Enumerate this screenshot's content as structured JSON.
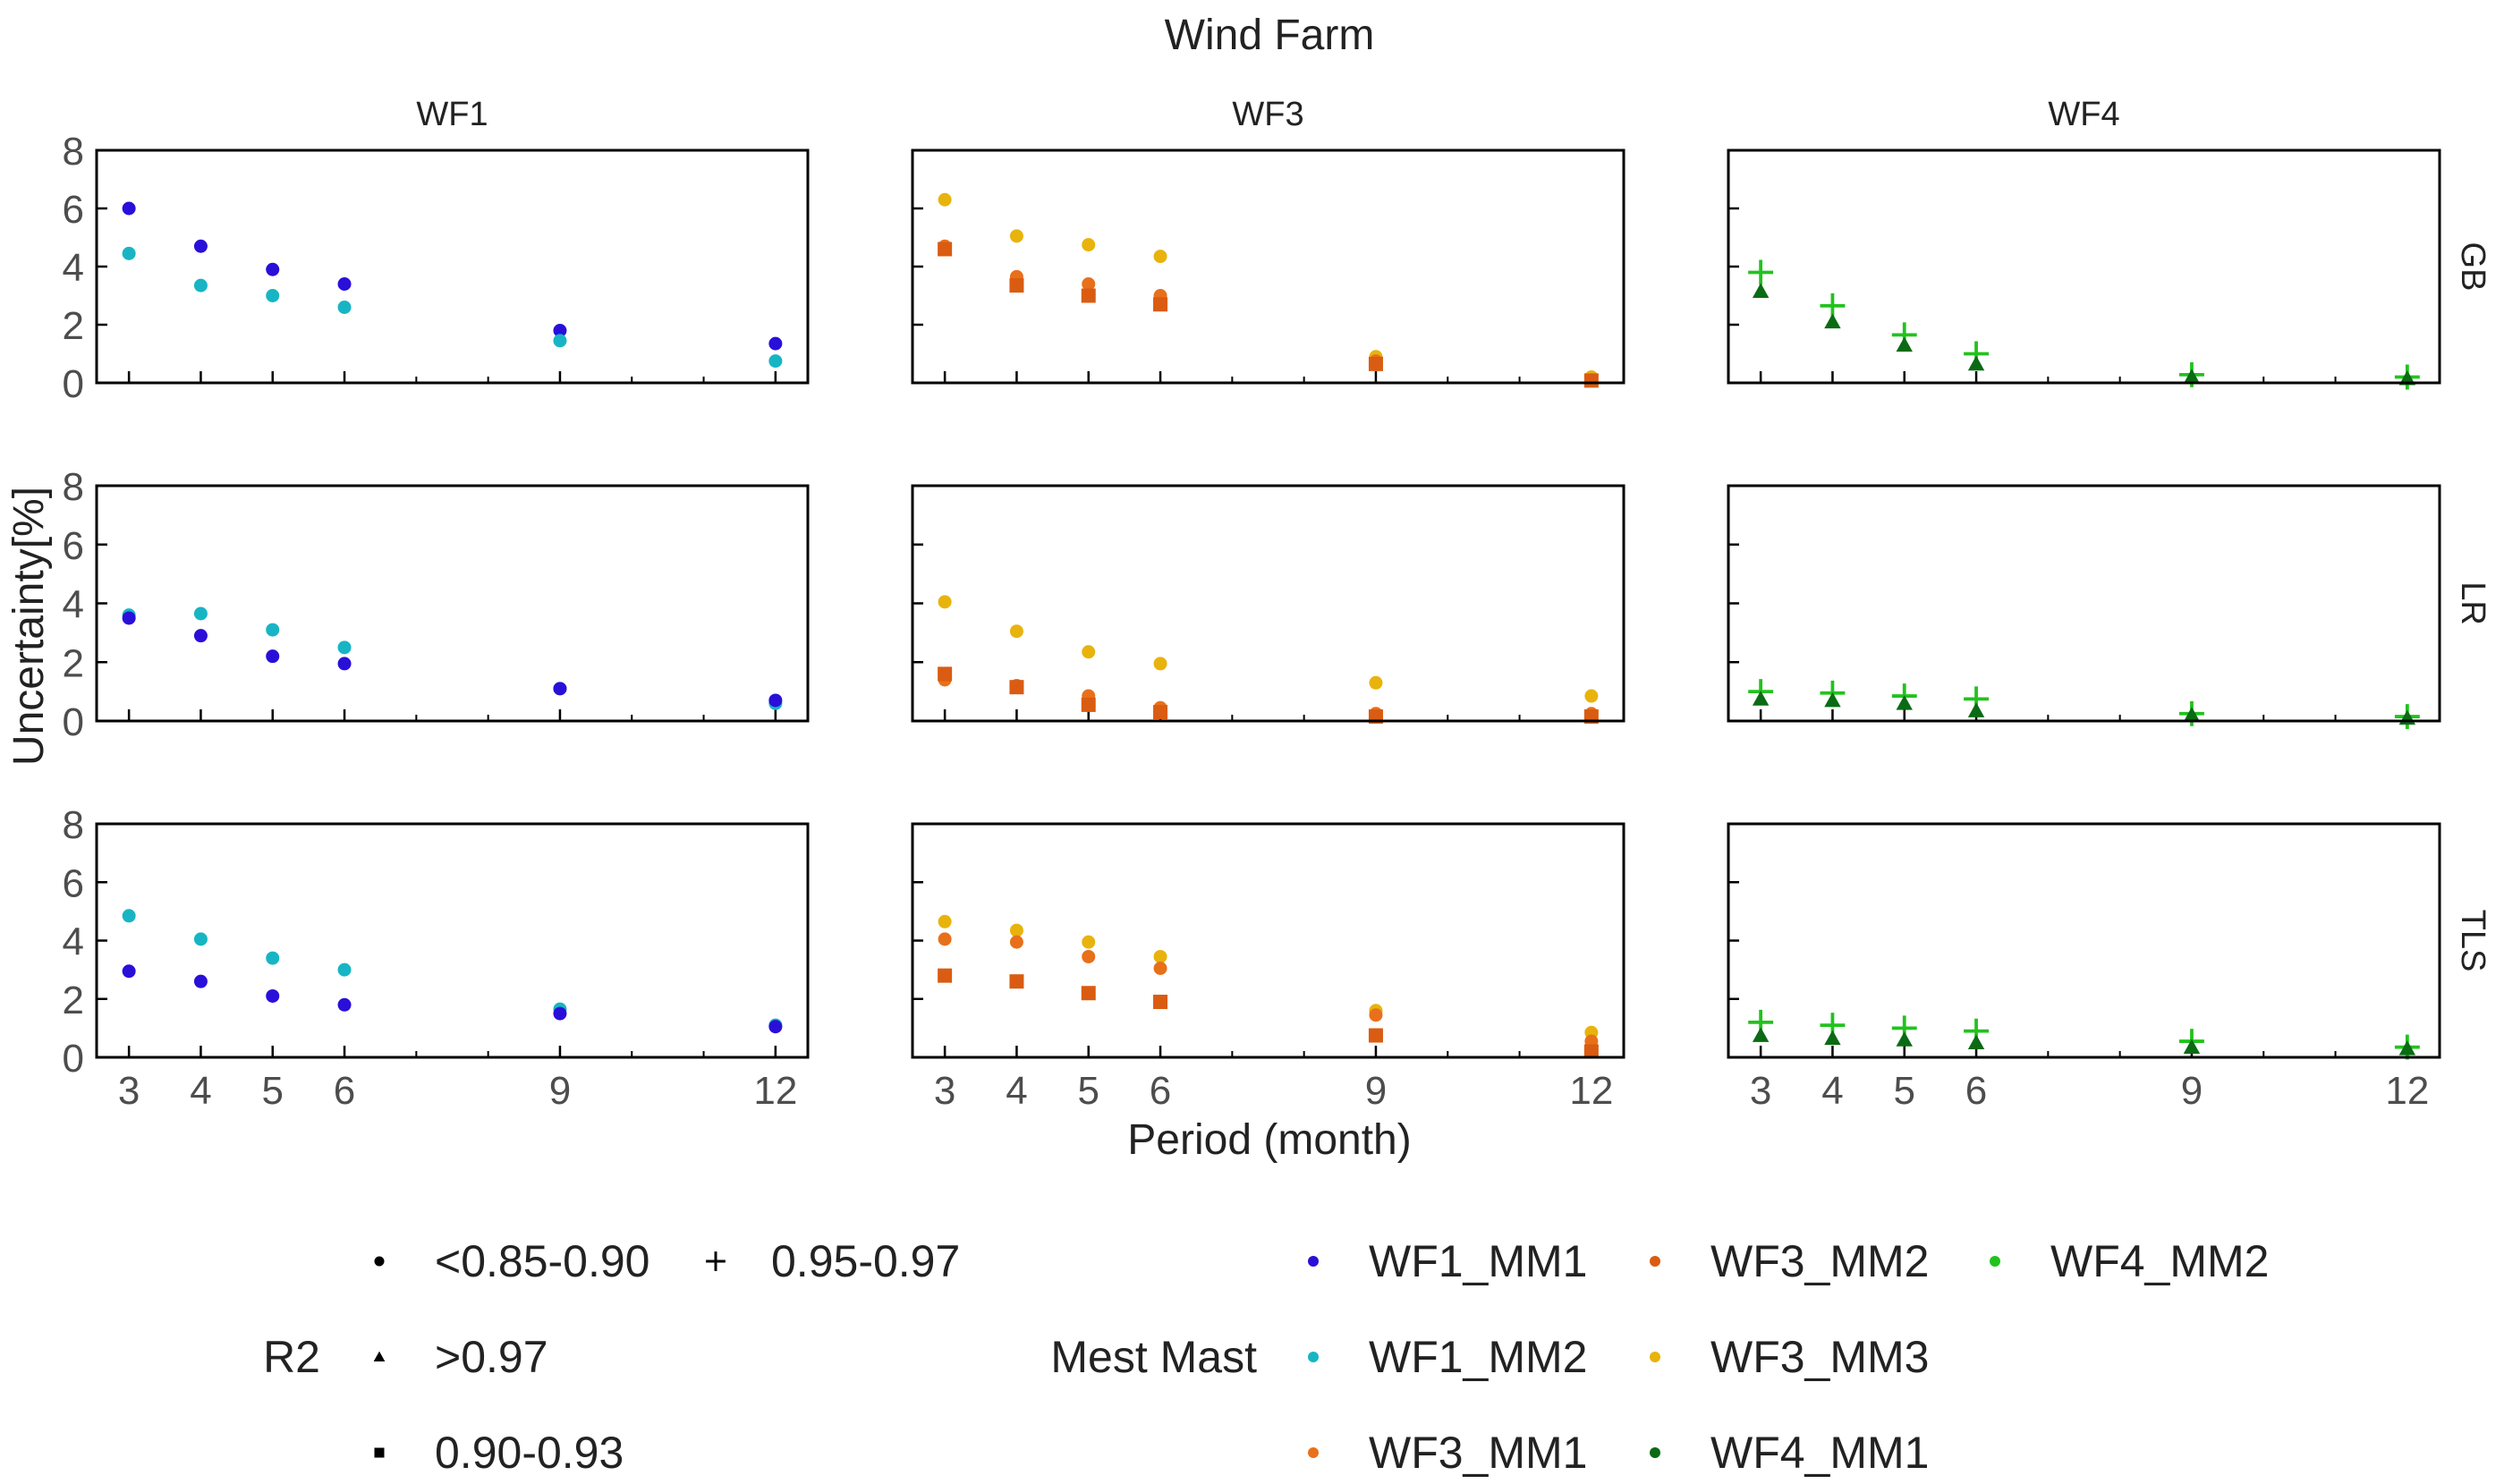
{
  "chart_data": {
    "type": "scatter",
    "title": "Wind Farm",
    "xlabel": "Period (month)",
    "ylabel": "Uncertainty[%]",
    "x_ticks": [
      3,
      4,
      5,
      6,
      9,
      12
    ],
    "xlim": [
      2.55,
      12.45
    ],
    "y_ticks": [
      0,
      2,
      4,
      6,
      8
    ],
    "ylim": [
      0,
      8
    ],
    "columns": [
      "WF1",
      "WF3",
      "WF4"
    ],
    "rows": [
      "GB",
      "LR",
      "TLS"
    ],
    "series_colors": {
      "WF1_MM1": "#2a0fd9",
      "WF1_MM2": "#17b5c4",
      "WF3_MM1": "#e8701a",
      "WF3_MM2": "#d95c12",
      "WF3_MM3": "#e8b30c",
      "WF4_MM1": "#0a6b14",
      "WF4_MM2": "#22c21e"
    },
    "panels": [
      {
        "col": "WF1",
        "row": "GB",
        "series": [
          {
            "name": "WF1_MM1",
            "shape": "circle",
            "x": [
              3,
              4,
              5,
              6,
              9,
              12
            ],
            "y": [
              6.0,
              4.7,
              3.9,
              3.4,
              1.8,
              1.35
            ]
          },
          {
            "name": "WF1_MM2",
            "shape": "circle",
            "x": [
              3,
              4,
              5,
              6,
              9,
              12
            ],
            "y": [
              4.45,
              3.35,
              3.0,
              2.6,
              1.45,
              0.75
            ]
          }
        ]
      },
      {
        "col": "WF3",
        "row": "GB",
        "series": [
          {
            "name": "WF3_MM3",
            "shape": "circle",
            "x": [
              3,
              4,
              5,
              6,
              9,
              12
            ],
            "y": [
              6.3,
              5.05,
              4.75,
              4.35,
              0.9,
              0.2
            ]
          },
          {
            "name": "WF3_MM1",
            "shape": "circle",
            "x": [
              3,
              4,
              5,
              6,
              9,
              12
            ],
            "y": [
              4.7,
              3.65,
              3.4,
              3.0,
              0.75,
              0.1
            ]
          },
          {
            "name": "WF3_MM2",
            "shape": "square",
            "x": [
              3,
              4,
              5,
              6,
              9,
              12
            ],
            "y": [
              4.6,
              3.35,
              3.0,
              2.7,
              0.65,
              0.08
            ]
          }
        ]
      },
      {
        "col": "WF4",
        "row": "GB",
        "series": [
          {
            "name": "WF4_MM2",
            "shape": "plus",
            "x": [
              3,
              4,
              5,
              6,
              9,
              12
            ],
            "y": [
              3.8,
              2.65,
              1.65,
              1.0,
              0.28,
              0.2
            ]
          },
          {
            "name": "WF4_MM1",
            "shape": "triangle",
            "x": [
              3,
              4,
              5,
              6,
              9,
              12
            ],
            "y": [
              3.15,
              2.1,
              1.3,
              0.65,
              0.2,
              0.15
            ]
          }
        ]
      },
      {
        "col": "WF1",
        "row": "LR",
        "series": [
          {
            "name": "WF1_MM2",
            "shape": "circle",
            "x": [
              3,
              4,
              5,
              6,
              9,
              12
            ],
            "y": [
              3.6,
              3.65,
              3.1,
              2.5,
              1.1,
              0.6
            ]
          },
          {
            "name": "WF1_MM1",
            "shape": "circle",
            "x": [
              3,
              4,
              5,
              6,
              9,
              12
            ],
            "y": [
              3.5,
              2.9,
              2.2,
              1.95,
              1.1,
              0.7
            ]
          }
        ]
      },
      {
        "col": "WF3",
        "row": "LR",
        "series": [
          {
            "name": "WF3_MM3",
            "shape": "circle",
            "x": [
              3,
              4,
              5,
              6,
              9,
              12
            ],
            "y": [
              4.05,
              3.05,
              2.35,
              1.95,
              1.3,
              0.85
            ]
          },
          {
            "name": "WF3_MM1",
            "shape": "circle",
            "x": [
              3,
              4,
              5,
              6,
              9,
              12
            ],
            "y": [
              1.4,
              1.2,
              0.85,
              0.45,
              0.25,
              0.25
            ]
          },
          {
            "name": "WF3_MM2",
            "shape": "square",
            "x": [
              3,
              4,
              5,
              6,
              9,
              12
            ],
            "y": [
              1.6,
              1.15,
              0.55,
              0.3,
              0.15,
              0.15
            ]
          }
        ]
      },
      {
        "col": "WF4",
        "row": "LR",
        "series": [
          {
            "name": "WF4_MM2",
            "shape": "plus",
            "x": [
              3,
              4,
              5,
              6,
              9,
              12
            ],
            "y": [
              1.0,
              0.95,
              0.85,
              0.75,
              0.25,
              0.15
            ]
          },
          {
            "name": "WF4_MM1",
            "shape": "triangle",
            "x": [
              3,
              4,
              5,
              6,
              9,
              12
            ],
            "y": [
              0.75,
              0.7,
              0.6,
              0.35,
              0.2,
              0.1
            ]
          }
        ]
      },
      {
        "col": "WF1",
        "row": "TLS",
        "series": [
          {
            "name": "WF1_MM2",
            "shape": "circle",
            "x": [
              3,
              4,
              5,
              6,
              9,
              12
            ],
            "y": [
              4.85,
              4.05,
              3.4,
              3.0,
              1.65,
              1.1
            ]
          },
          {
            "name": "WF1_MM1",
            "shape": "circle",
            "x": [
              3,
              4,
              5,
              6,
              9,
              12
            ],
            "y": [
              2.95,
              2.6,
              2.1,
              1.8,
              1.5,
              1.05
            ]
          }
        ]
      },
      {
        "col": "WF3",
        "row": "TLS",
        "series": [
          {
            "name": "WF3_MM3",
            "shape": "circle",
            "x": [
              3,
              4,
              5,
              6,
              9,
              12
            ],
            "y": [
              4.65,
              4.35,
              3.95,
              3.45,
              1.6,
              0.85
            ]
          },
          {
            "name": "WF3_MM1",
            "shape": "circle",
            "x": [
              3,
              4,
              5,
              6,
              9,
              12
            ],
            "y": [
              4.05,
              3.95,
              3.45,
              3.05,
              1.45,
              0.55
            ]
          },
          {
            "name": "WF3_MM2",
            "shape": "square",
            "x": [
              3,
              4,
              5,
              6,
              9,
              12
            ],
            "y": [
              2.8,
              2.6,
              2.2,
              1.9,
              0.75,
              0.2
            ]
          }
        ]
      },
      {
        "col": "WF4",
        "row": "TLS",
        "series": [
          {
            "name": "WF4_MM2",
            "shape": "plus",
            "x": [
              3,
              4,
              5,
              6,
              9,
              12
            ],
            "y": [
              1.2,
              1.1,
              1.0,
              0.9,
              0.55,
              0.35
            ]
          },
          {
            "name": "WF4_MM1",
            "shape": "triangle",
            "x": [
              3,
              4,
              5,
              6,
              9,
              12
            ],
            "y": [
              0.75,
              0.65,
              0.6,
              0.5,
              0.35,
              0.3
            ]
          }
        ]
      }
    ],
    "legend": {
      "r2_title": "R2",
      "r2_items": [
        {
          "label": "<0.85-0.90",
          "shape": "circle"
        },
        {
          "label": "0.95-0.97",
          "shape": "plus"
        },
        {
          "label": ">0.97",
          "shape": "triangle"
        },
        {
          "label": "0.90-0.93",
          "shape": "square"
        }
      ],
      "mast_title": "Mest Mast",
      "mast_items": [
        "WF1_MM1",
        "WF3_MM2",
        "WF4_MM2",
        "WF1_MM2",
        "WF3_MM3",
        "WF3_MM1",
        "WF4_MM1"
      ]
    }
  }
}
